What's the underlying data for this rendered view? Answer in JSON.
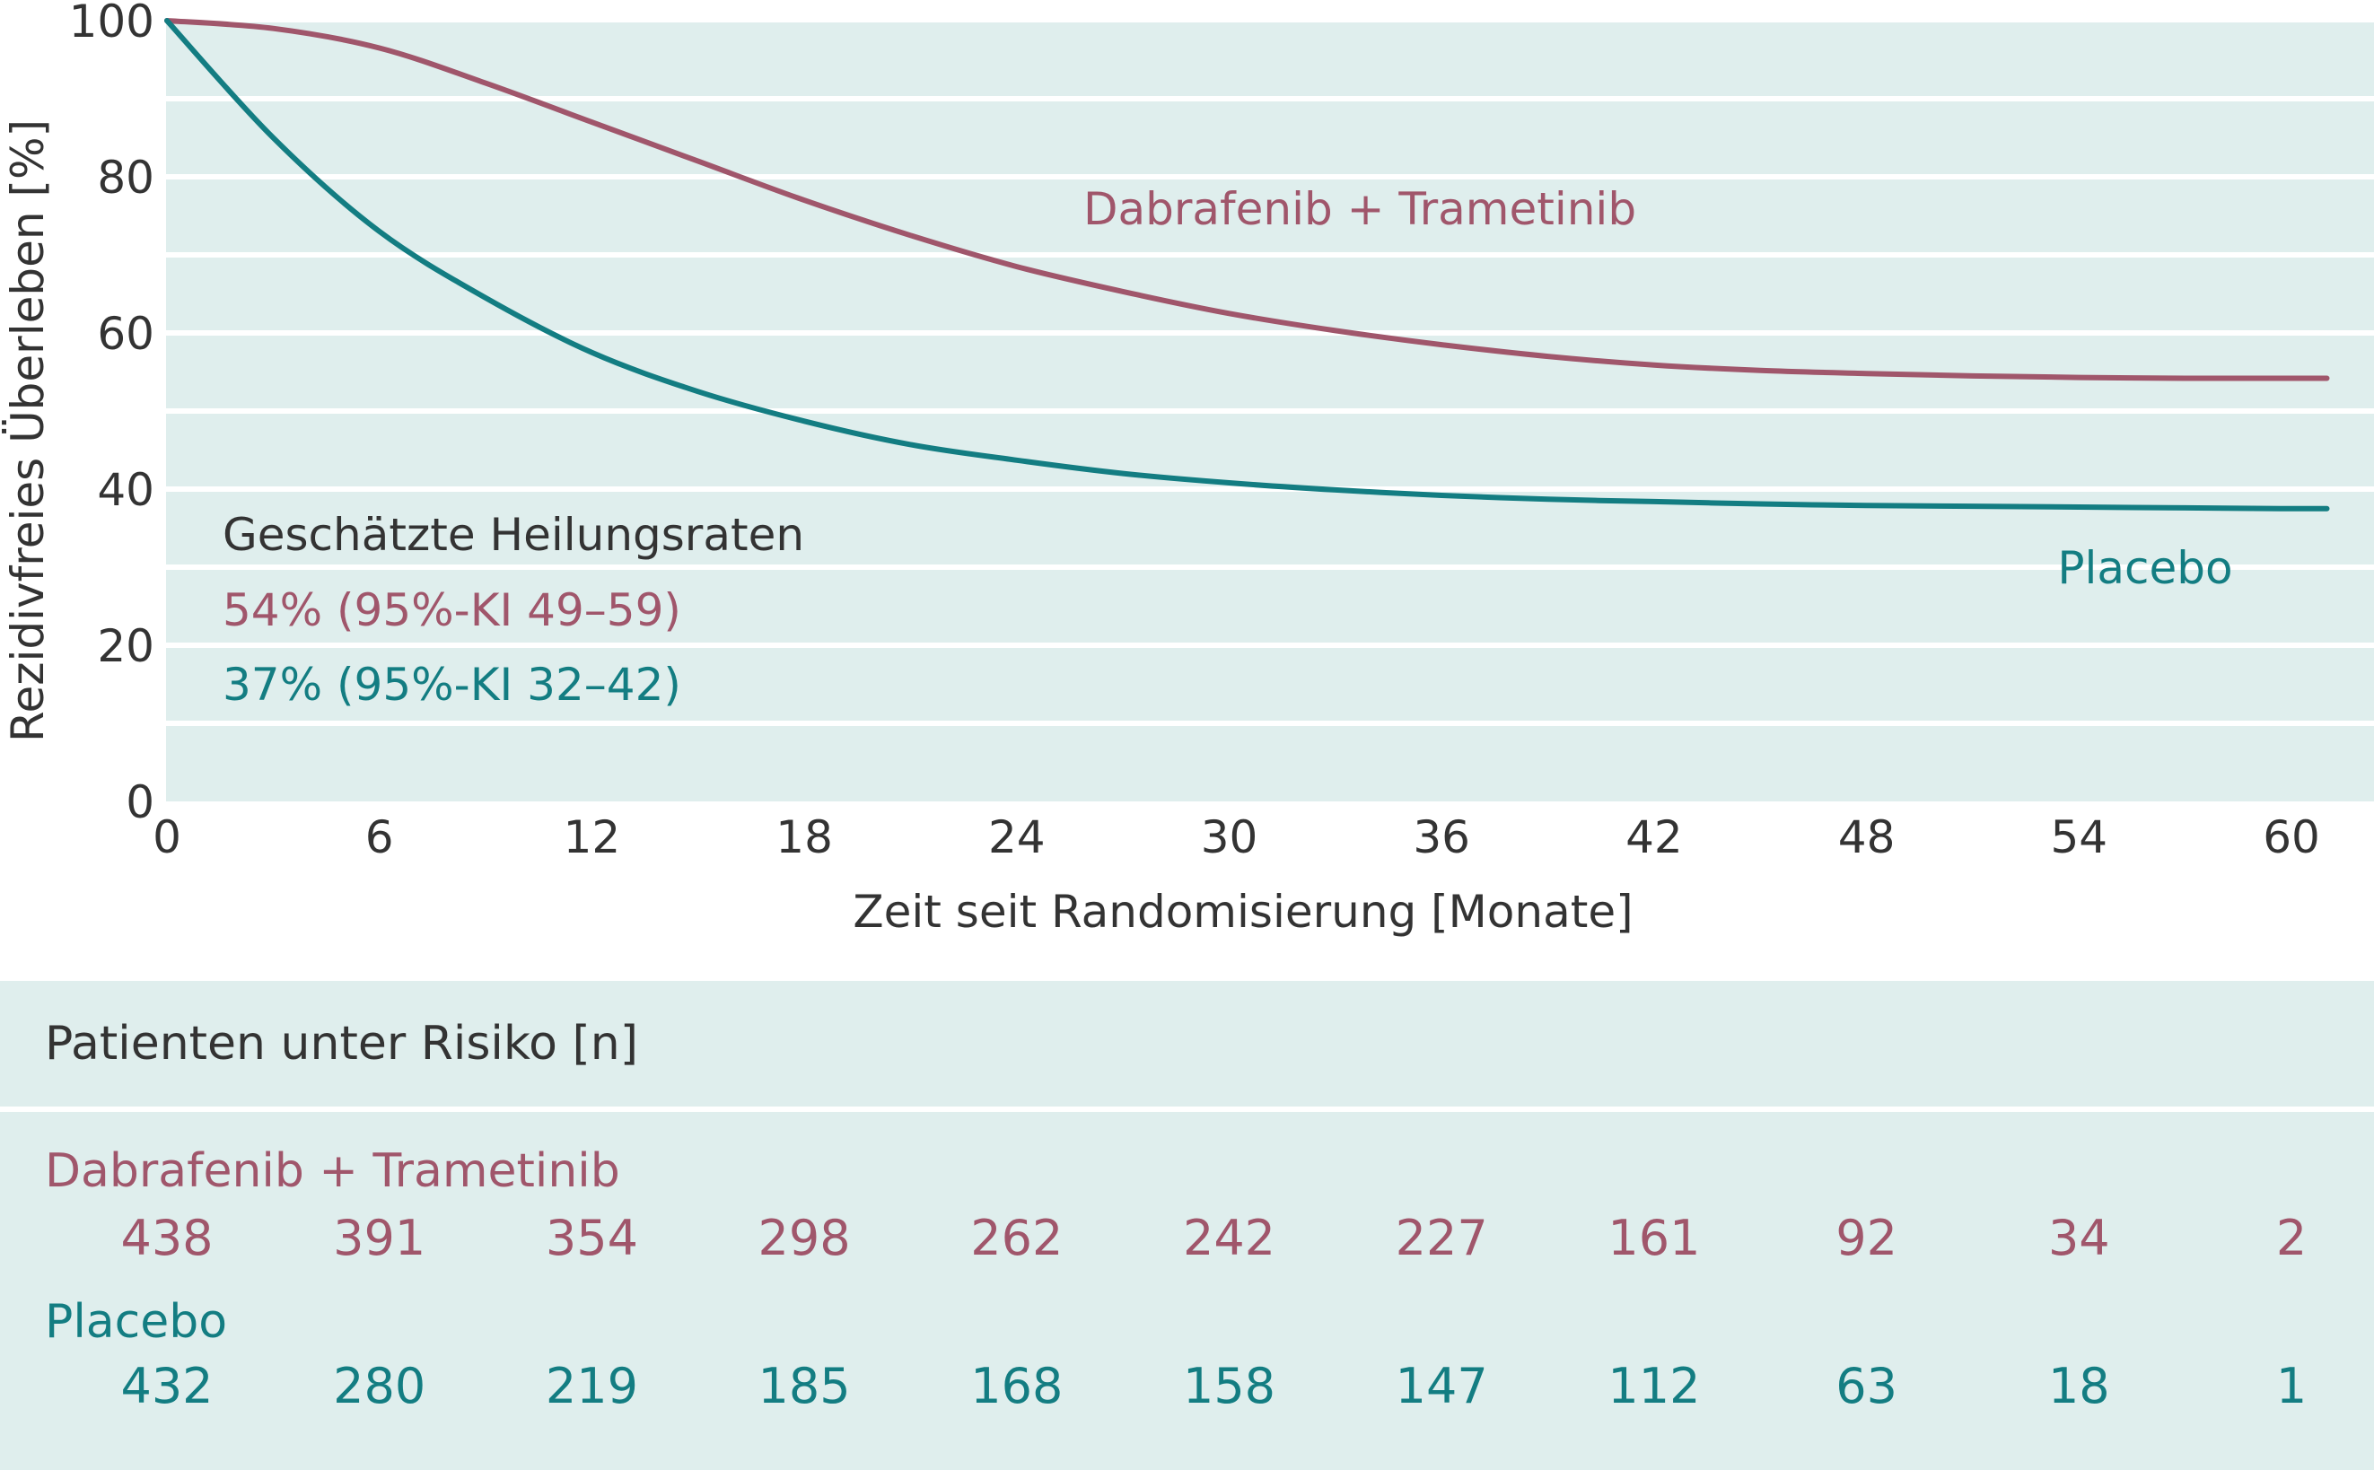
{
  "colors": {
    "treatment": "#a0566b",
    "placebo": "#137d82",
    "plot_bg": "#dfeeed",
    "text": "#333333",
    "grid": "#ffffff"
  },
  "chart_data": {
    "type": "line",
    "ylabel": "Rezidivfreies Überleben [%]",
    "xlabel": "Zeit seit Randomisierung [Monate]",
    "xlim": [
      0,
      61
    ],
    "ylim": [
      0,
      100
    ],
    "x_ticks": [
      0,
      6,
      12,
      18,
      24,
      30,
      36,
      42,
      48,
      54,
      60
    ],
    "y_ticks": [
      0,
      20,
      40,
      60,
      80,
      100
    ],
    "grid": true,
    "series": [
      {
        "name": "Dabrafenib + Trametinib",
        "color": "#a0566b",
        "x": [
          0,
          3,
          6,
          9,
          12,
          15,
          18,
          21,
          24,
          27,
          30,
          33,
          36,
          39,
          42,
          45,
          48,
          51,
          54,
          57,
          60,
          61
        ],
        "y": [
          100,
          99,
          96.5,
          92,
          87,
          82,
          77,
          72.5,
          68.5,
          65.3,
          62.5,
          60.3,
          58.5,
          57,
          55.9,
          55.2,
          54.8,
          54.5,
          54.3,
          54.2,
          54.2,
          54.2
        ]
      },
      {
        "name": "Placebo",
        "color": "#137d82",
        "x": [
          0,
          3,
          6,
          9,
          12,
          15,
          18,
          21,
          24,
          27,
          30,
          33,
          36,
          39,
          42,
          45,
          48,
          51,
          54,
          57,
          60,
          61
        ],
        "y": [
          100,
          85,
          73,
          64.5,
          57.5,
          52.5,
          48.7,
          45.7,
          43.7,
          42,
          40.8,
          39.9,
          39.2,
          38.7,
          38.4,
          38.1,
          37.9,
          37.8,
          37.7,
          37.6,
          37.5,
          37.5
        ]
      }
    ],
    "annotations": {
      "cure_title": "Geschätzte Heilungsraten",
      "cure_treatment": "54% (95%-KI 49–59)",
      "cure_placebo": "37% (95%-KI 32–42)"
    }
  },
  "risk_table": {
    "title": "Patienten unter Risiko [n]",
    "rows": [
      {
        "name": "Dabrafenib + Trametinib",
        "values": [
          "438",
          "391",
          "354",
          "298",
          "262",
          "242",
          "227",
          "161",
          "92",
          "34",
          "2"
        ]
      },
      {
        "name": "Placebo",
        "values": [
          "432",
          "280",
          "219",
          "185",
          "168",
          "158",
          "147",
          "112",
          "63",
          "18",
          "1"
        ]
      }
    ]
  }
}
